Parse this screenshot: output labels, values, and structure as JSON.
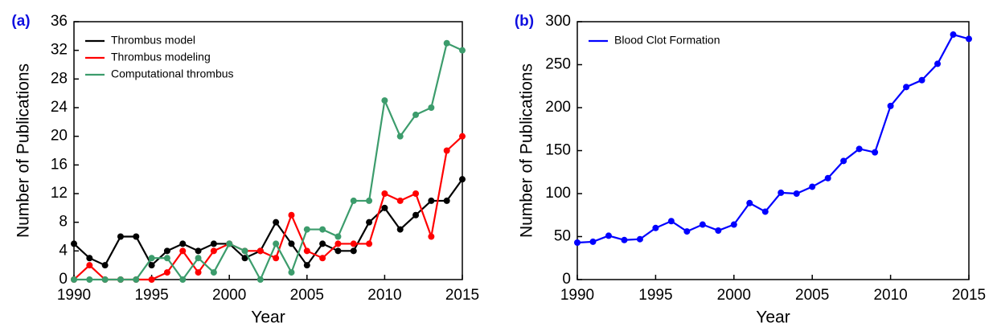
{
  "chart_data": [
    {
      "type": "line",
      "panel_label": "(a)",
      "x_label": "Year",
      "y_label": "Number of Publications",
      "x": [
        1990,
        1991,
        1992,
        1993,
        1994,
        1995,
        1996,
        1997,
        1998,
        1999,
        2000,
        2001,
        2002,
        2003,
        2004,
        2005,
        2006,
        2007,
        2008,
        2009,
        2010,
        2011,
        2012,
        2013,
        2014,
        2015
      ],
      "xlim": [
        1990,
        2015
      ],
      "xticks": [
        1990,
        1995,
        2000,
        2005,
        2010,
        2015
      ],
      "ylim": [
        0,
        36
      ],
      "yticks": [
        0,
        4,
        8,
        12,
        16,
        20,
        24,
        28,
        32,
        36
      ],
      "legend": "upper left",
      "series": [
        {
          "name": "Thrombus model",
          "color": "#000000",
          "values": [
            5,
            3,
            2,
            6,
            6,
            2,
            4,
            5,
            4,
            5,
            5,
            3,
            4,
            8,
            5,
            2,
            5,
            4,
            4,
            8,
            10,
            7,
            9,
            11,
            11,
            14
          ]
        },
        {
          "name": "Thrombus modeling",
          "color": "#ff0000",
          "values": [
            0,
            2,
            0,
            0,
            0,
            0,
            1,
            4,
            1,
            4,
            5,
            4,
            4,
            3,
            9,
            4,
            3,
            5,
            5,
            5,
            12,
            11,
            12,
            6,
            18,
            20
          ]
        },
        {
          "name": "Computational thrombus",
          "color": "#3c9c6c",
          "values": [
            0,
            0,
            0,
            0,
            0,
            3,
            3,
            0,
            3,
            1,
            5,
            4,
            0,
            5,
            1,
            7,
            7,
            6,
            11,
            11,
            25,
            20,
            23,
            24,
            33,
            32
          ]
        }
      ]
    },
    {
      "type": "line",
      "panel_label": "(b)",
      "x_label": "Year",
      "y_label": "Number of Publications",
      "x": [
        1990,
        1991,
        1992,
        1993,
        1994,
        1995,
        1996,
        1997,
        1998,
        1999,
        2000,
        2001,
        2002,
        2003,
        2004,
        2005,
        2006,
        2007,
        2008,
        2009,
        2010,
        2011,
        2012,
        2013,
        2014,
        2015
      ],
      "xlim": [
        1990,
        2015
      ],
      "xticks": [
        1990,
        1995,
        2000,
        2005,
        2010,
        2015
      ],
      "ylim": [
        0,
        300
      ],
      "yticks": [
        0,
        50,
        100,
        150,
        200,
        250,
        300
      ],
      "legend": "upper left",
      "series": [
        {
          "name": "Blood Clot Formation",
          "color": "#0000ff",
          "values": [
            43,
            44,
            51,
            46,
            47,
            60,
            68,
            56,
            64,
            57,
            64,
            89,
            79,
            101,
            100,
            108,
            118,
            138,
            152,
            148,
            202,
            224,
            232,
            251,
            285,
            280
          ]
        }
      ]
    }
  ]
}
